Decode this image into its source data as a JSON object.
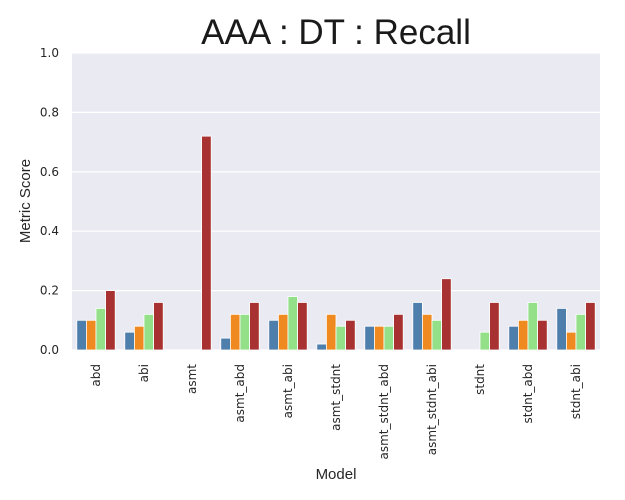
{
  "chart_data": {
    "type": "bar",
    "title": "AAA : DT : Recall",
    "xlabel": "Model",
    "ylabel": "Metric Score",
    "ylim": [
      0,
      1.0
    ],
    "yticks": [
      "0.0",
      "0.2",
      "0.4",
      "0.6",
      "0.8",
      "1.0"
    ],
    "grid": true,
    "legend": "none",
    "categories": [
      "abd",
      "abi",
      "asmt",
      "asmt_abd",
      "asmt_abi",
      "asmt_stdnt",
      "asmt_stdnt_abd",
      "asmt_stdnt_abi",
      "stdnt",
      "stdnt_abd",
      "stdnt_abi"
    ],
    "series": [
      {
        "color": "#4e7fac",
        "values": [
          0.1,
          0.06,
          0.0,
          0.04,
          0.1,
          0.02,
          0.08,
          0.16,
          0.0,
          0.08,
          0.14
        ]
      },
      {
        "color": "#ee8a20",
        "values": [
          0.1,
          0.08,
          0.0,
          0.12,
          0.12,
          0.12,
          0.08,
          0.12,
          0.0,
          0.1,
          0.06
        ]
      },
      {
        "color": "#94e089",
        "values": [
          0.14,
          0.12,
          0.0,
          0.12,
          0.18,
          0.08,
          0.08,
          0.1,
          0.06,
          0.16,
          0.12
        ]
      },
      {
        "color": "#a83232",
        "values": [
          0.2,
          0.16,
          0.72,
          0.16,
          0.16,
          0.1,
          0.12,
          0.24,
          0.16,
          0.1,
          0.16
        ]
      }
    ],
    "plot_background": "#eaeaf2",
    "grid_color": "#ffffff"
  }
}
